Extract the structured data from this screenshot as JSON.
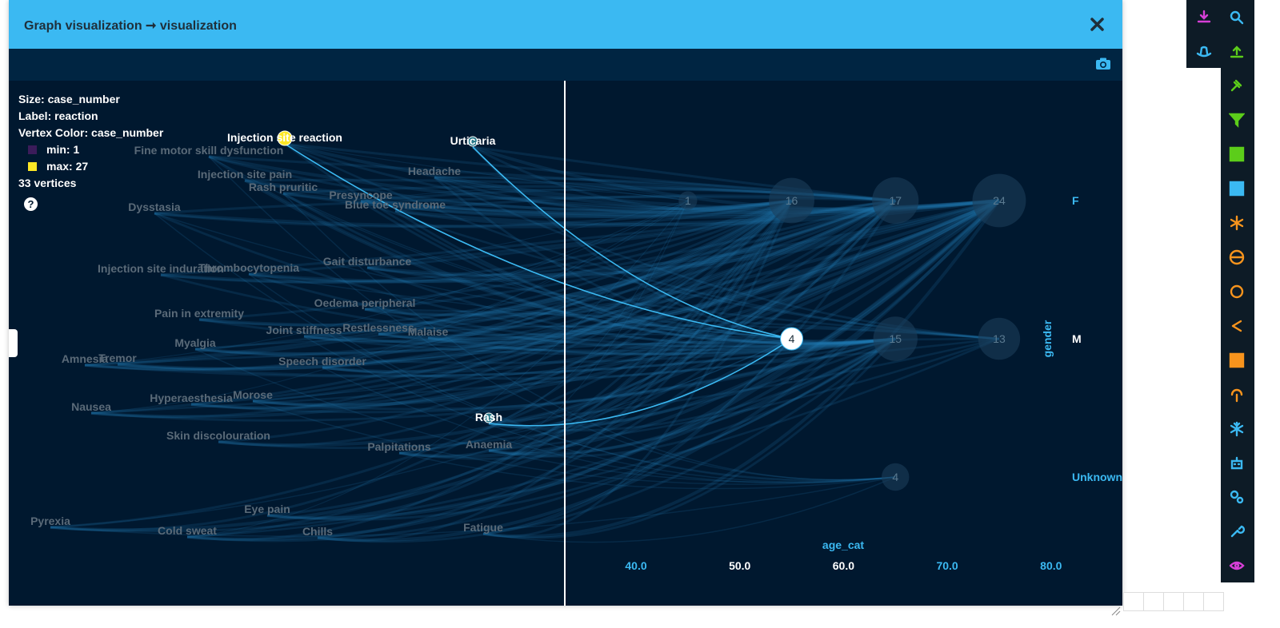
{
  "modal": {
    "title": "Graph visualization ➞ visualization",
    "close_icon": "close-icon",
    "camera_icon": "camera-icon"
  },
  "legend": {
    "size": "Size: case_number",
    "label": "Label: reaction",
    "vertex_color": "Vertex Color: case_number",
    "min": "min: 1",
    "max": "max: 27",
    "min_color": "#3b1c5a",
    "max_color": "#fde725",
    "count": "33 vertices",
    "help": "?"
  },
  "reactions": [
    {
      "text": "Injection site reaction",
      "highlight": true
    },
    {
      "text": "Urticaria",
      "highlight": true
    },
    {
      "text": "Fine motor skill dysfunction"
    },
    {
      "text": "Headache"
    },
    {
      "text": "Injection site pain"
    },
    {
      "text": "Rash pruritic"
    },
    {
      "text": "Presyncope"
    },
    {
      "text": "Blue toe syndrome"
    },
    {
      "text": "Dysstasia"
    },
    {
      "text": "Gait disturbance"
    },
    {
      "text": "Injection site induration"
    },
    {
      "text": "Thrombocytopenia"
    },
    {
      "text": "Oedema peripheral"
    },
    {
      "text": "Pain in extremity"
    },
    {
      "text": "Joint stiffness"
    },
    {
      "text": "Restlessness"
    },
    {
      "text": "Malaise"
    },
    {
      "text": "Myalgia"
    },
    {
      "text": "Amnesia"
    },
    {
      "text": "Tremor"
    },
    {
      "text": "Speech disorder"
    },
    {
      "text": "Nausea"
    },
    {
      "text": "Hyperaesthesia"
    },
    {
      "text": "Morose"
    },
    {
      "text": "Rash",
      "highlight": true
    },
    {
      "text": "Skin discolouration"
    },
    {
      "text": "Palpitations"
    },
    {
      "text": "Anaemia"
    },
    {
      "text": "Eye pain"
    },
    {
      "text": "Pyrexia"
    },
    {
      "text": "Cold sweat"
    },
    {
      "text": "Chills"
    },
    {
      "text": "Fatigue"
    }
  ],
  "grid": {
    "x_axis_label": "age_cat",
    "y_axis_label": "gender",
    "x_ticks": [
      "40.0",
      "50.0",
      "60.0",
      "70.0",
      "80.0"
    ],
    "y_ticks": [
      "F",
      "M",
      "Unknown"
    ],
    "nodes": [
      {
        "label": "1",
        "gender": "F",
        "age_cat": 45,
        "case_number": 1
      },
      {
        "label": "16",
        "gender": "F",
        "age_cat": 55,
        "case_number": 16
      },
      {
        "label": "17",
        "gender": "F",
        "age_cat": 65,
        "case_number": 17
      },
      {
        "label": "24",
        "gender": "F",
        "age_cat": 75,
        "case_number": 24
      },
      {
        "label": "4",
        "gender": "M",
        "age_cat": 55,
        "case_number": 4,
        "selected": true
      },
      {
        "label": "15",
        "gender": "M",
        "age_cat": 65,
        "case_number": 15
      },
      {
        "label": "13",
        "gender": "M",
        "age_cat": 75,
        "case_number": 13
      },
      {
        "label": "4",
        "gender": "Unknown",
        "age_cat": 65,
        "case_number": 4
      }
    ]
  },
  "toolbar": [
    {
      "icon": "download-icon",
      "color": "#d63fd6"
    },
    {
      "icon": "cowboy-hat-icon",
      "color": "#3bb9f2"
    },
    {
      "icon": "search-icon",
      "color": "#3bb9f2"
    },
    {
      "icon": "upload-icon",
      "color": "#5ccd1a"
    },
    {
      "icon": "gavel-icon",
      "color": "#5ccd1a"
    },
    {
      "icon": "filter-icon",
      "color": "#5ccd1a"
    },
    {
      "icon": "grid-icon",
      "color": "#5ccd1a"
    },
    {
      "icon": "table-icon",
      "color": "#3bb9f2"
    },
    {
      "icon": "asterisk-icon",
      "color": "#f7941d"
    },
    {
      "icon": "globe-icon",
      "color": "#f7941d"
    },
    {
      "icon": "circle-icon",
      "color": "#f7941d"
    },
    {
      "icon": "share-icon",
      "color": "#f7941d"
    },
    {
      "icon": "th-icon",
      "color": "#f7941d"
    },
    {
      "icon": "podcast-icon",
      "color": "#f7941d"
    },
    {
      "icon": "snowflake-icon",
      "color": "#3bb9f2"
    },
    {
      "icon": "robot-icon",
      "color": "#3bb9f2"
    },
    {
      "icon": "cogs-icon",
      "color": "#3bb9f2"
    },
    {
      "icon": "wrench-icon",
      "color": "#3bb9f2"
    },
    {
      "icon": "eye-icon",
      "color": "#d63fd6"
    }
  ]
}
